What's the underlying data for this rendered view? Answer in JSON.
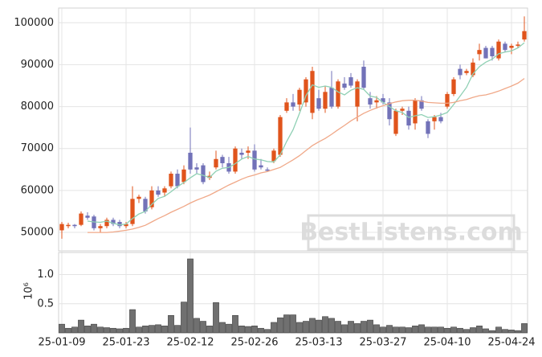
{
  "chart_data": [
    {
      "type": "candlestick",
      "watermark": "BestListens.com",
      "categories": [
        "25-01-09",
        null,
        null,
        null,
        null,
        null,
        null,
        null,
        null,
        null,
        "25-01-23",
        null,
        null,
        null,
        null,
        null,
        null,
        null,
        null,
        null,
        "25-02-12",
        null,
        null,
        null,
        null,
        null,
        null,
        null,
        null,
        null,
        "25-02-26",
        null,
        null,
        null,
        null,
        null,
        null,
        null,
        null,
        null,
        "25-03-13",
        null,
        null,
        null,
        null,
        null,
        null,
        null,
        null,
        null,
        "25-03-27",
        null,
        null,
        null,
        null,
        null,
        null,
        null,
        null,
        null,
        "25-04-10",
        null,
        null,
        null,
        null,
        null,
        null,
        null,
        null,
        null,
        "25-04-24",
        null,
        null
      ],
      "open": [
        50500,
        51500,
        51800,
        51800,
        54000,
        53800,
        51000,
        51500,
        53000,
        52500,
        51500,
        52000,
        58000,
        58000,
        56000,
        60000,
        59500,
        61000,
        64000,
        62000,
        69000,
        65500,
        66000,
        63000,
        65500,
        68000,
        66500,
        64500,
        69000,
        69000,
        69500,
        66000,
        65000,
        67000,
        68500,
        79000,
        81000,
        80500,
        81000,
        78500,
        82000,
        79500,
        84500,
        80000,
        85500,
        87000,
        80000,
        89500,
        82000,
        81000,
        82000,
        81000,
        73500,
        79000,
        79000,
        76000,
        81500,
        76500,
        76500,
        77500,
        80000,
        83000,
        89000,
        88000,
        87500,
        92500,
        94000,
        94000,
        91500,
        95000,
        94000,
        94500,
        96000
      ],
      "high": [
        52500,
        52300,
        52000,
        55000,
        54800,
        54200,
        52000,
        53500,
        53500,
        53000,
        52500,
        61000,
        59000,
        58500,
        61000,
        61000,
        61000,
        64500,
        65000,
        66000,
        75000,
        66500,
        66500,
        64500,
        69500,
        68500,
        68000,
        70500,
        70000,
        70500,
        71000,
        67500,
        65500,
        70000,
        78000,
        82000,
        83000,
        84500,
        87000,
        89500,
        84000,
        85000,
        88500,
        86500,
        87000,
        88000,
        86500,
        91000,
        83500,
        82500,
        83000,
        82000,
        79500,
        80000,
        80000,
        82000,
        82500,
        77000,
        78000,
        78500,
        83500,
        87000,
        90000,
        89000,
        91500,
        95000,
        94500,
        94500,
        96000,
        95500,
        95000,
        95500,
        101500
      ],
      "low": [
        48500,
        51000,
        51000,
        51500,
        53000,
        50500,
        50000,
        51000,
        51500,
        51000,
        51000,
        51500,
        57000,
        54500,
        55500,
        58500,
        58500,
        60500,
        60500,
        61500,
        64000,
        64000,
        61500,
        62500,
        65000,
        65500,
        64000,
        64000,
        67500,
        67500,
        64500,
        65000,
        64500,
        66500,
        68000,
        78500,
        79000,
        79000,
        80000,
        77000,
        79000,
        78500,
        79500,
        79500,
        84000,
        84500,
        76500,
        84000,
        79500,
        79500,
        80500,
        75500,
        73000,
        78000,
        74500,
        74500,
        79000,
        72500,
        74500,
        76000,
        79500,
        82500,
        86500,
        87500,
        87000,
        91000,
        91500,
        91000,
        91000,
        93000,
        92500,
        94000,
        95500
      ],
      "close": [
        52000,
        51800,
        51500,
        54500,
        53500,
        51000,
        51500,
        53000,
        52000,
        51500,
        52000,
        58000,
        58500,
        55000,
        60000,
        59000,
        60500,
        64000,
        61000,
        65000,
        65000,
        65000,
        62000,
        63500,
        67500,
        66500,
        64500,
        70000,
        68500,
        69500,
        65000,
        65500,
        64700,
        69500,
        77500,
        81000,
        80000,
        84000,
        86500,
        88500,
        79500,
        83500,
        80000,
        86000,
        84500,
        85000,
        86000,
        84500,
        80500,
        81500,
        81000,
        77000,
        79000,
        79500,
        75500,
        81500,
        79500,
        73500,
        77500,
        76500,
        83000,
        86500,
        87500,
        88500,
        90500,
        93500,
        91500,
        92000,
        95500,
        93500,
        94500,
        94800,
        98000
      ],
      "up_color": "#e0541c",
      "down_color": "#7272b8",
      "series": [
        {
          "color": "#8fd0b4",
          "values": [
            null,
            null,
            null,
            null,
            52700,
            52500,
            52400,
            52700,
            52200,
            51800,
            52000,
            53300,
            54400,
            55000,
            56700,
            58100,
            58600,
            59700,
            60900,
            61900,
            63000,
            64000,
            63600,
            63100,
            64600,
            65300,
            65500,
            66400,
            67500,
            68100,
            67500,
            67300,
            66900,
            66800,
            68500,
            71700,
            74500,
            78400,
            82600,
            85200,
            84600,
            84900,
            84600,
            83500,
            82800,
            83900,
            84500,
            84100,
            82500,
            82200,
            81000,
            80000,
            79000,
            78600,
            77400,
            77800,
            78100,
            77400,
            77600,
            78000,
            78600,
            80500,
            82500,
            84600,
            87800,
            89500,
            90600,
            91300,
            92600,
            93000,
            93300,
            94000,
            95200
          ]
        },
        {
          "color": "#f0a888",
          "values": [
            null,
            null,
            null,
            null,
            50000,
            50000,
            50000,
            50000,
            50100,
            50300,
            50500,
            50800,
            51200,
            51700,
            52500,
            53300,
            54000,
            54800,
            55500,
            56200,
            57000,
            57700,
            58300,
            58900,
            59700,
            60500,
            61300,
            62000,
            62700,
            63300,
            63700,
            64200,
            64500,
            65000,
            65500,
            66400,
            67300,
            68300,
            69500,
            70700,
            71600,
            72400,
            73400,
            74500,
            75500,
            76600,
            77500,
            78400,
            79100,
            79700,
            80200,
            80700,
            81100,
            81400,
            81500,
            81500,
            81300,
            81000,
            80900,
            80800,
            80800,
            81000,
            81400,
            81700,
            82200,
            82600,
            82800,
            83200,
            83700,
            84300,
            84900,
            85600,
            86700
          ]
        }
      ],
      "ylim": [
        45600,
        103500
      ],
      "yticks": [
        50000,
        60000,
        70000,
        80000,
        90000,
        100000
      ],
      "grid": true
    },
    {
      "type": "bar",
      "ylabel": "10⁶",
      "values": [
        0.15,
        0.08,
        0.1,
        0.22,
        0.12,
        0.15,
        0.1,
        0.09,
        0.08,
        0.07,
        0.08,
        0.4,
        0.1,
        0.12,
        0.13,
        0.14,
        0.12,
        0.3,
        0.13,
        0.53,
        1.27,
        0.25,
        0.2,
        0.12,
        0.52,
        0.18,
        0.15,
        0.3,
        0.12,
        0.11,
        0.12,
        0.08,
        0.06,
        0.18,
        0.26,
        0.31,
        0.31,
        0.18,
        0.2,
        0.25,
        0.22,
        0.28,
        0.25,
        0.2,
        0.14,
        0.2,
        0.16,
        0.2,
        0.22,
        0.14,
        0.1,
        0.13,
        0.1,
        0.1,
        0.09,
        0.12,
        0.14,
        0.1,
        0.1,
        0.1,
        0.08,
        0.1,
        0.08,
        0.06,
        0.09,
        0.12,
        0.07,
        0.04,
        0.1,
        0.06,
        0.05,
        0.04,
        0.16
      ],
      "color": "#707070",
      "ylim": [
        0,
        1.38
      ],
      "yticks": [
        0.5,
        {
          "value": 1,
          "label": "1.0"
        }
      ],
      "grid": true
    }
  ]
}
